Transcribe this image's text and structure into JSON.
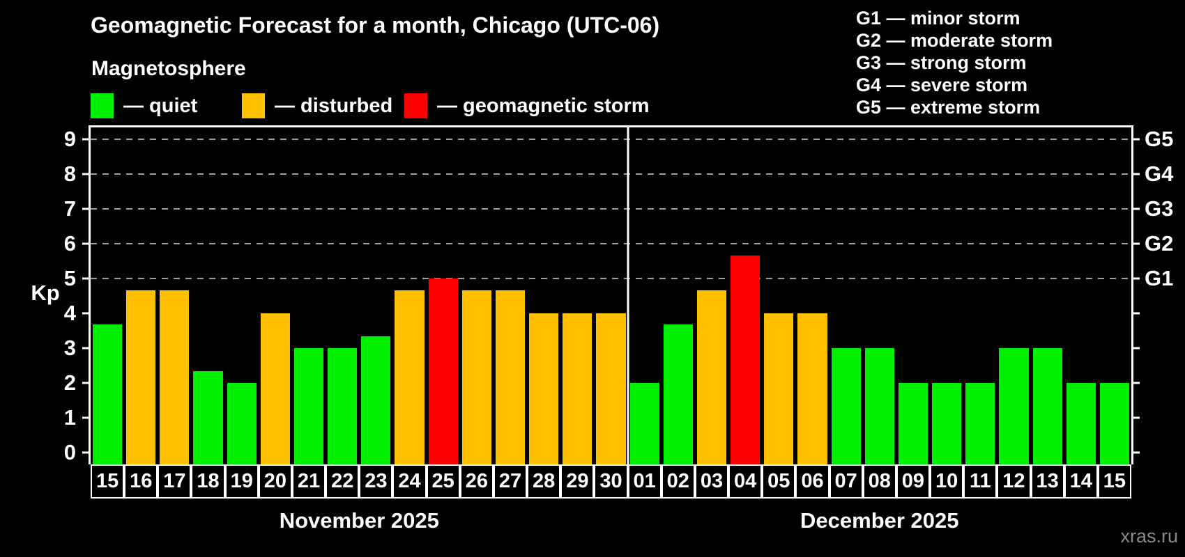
{
  "header": {
    "title": "Geomagnetic Forecast for a month, Chicago (UTC-06)",
    "subtitle": "Magnetosphere"
  },
  "legend": {
    "items": [
      {
        "name": "quiet",
        "label": "— quiet",
        "color": "#00ee00"
      },
      {
        "name": "disturbed",
        "label": "— disturbed",
        "color": "#ffc000"
      },
      {
        "name": "geomagnetic-storm",
        "label": "— geomagnetic storm",
        "color": "#ff0000"
      }
    ]
  },
  "g_legend": {
    "items": [
      "G1 — minor storm",
      "G2 — moderate storm",
      "G3 — strong storm",
      "G4 — severe storm",
      "G5 — extreme storm"
    ]
  },
  "watermark": "xras.ru",
  "chart_data": {
    "type": "bar",
    "ylabel": "Kp",
    "ylim": [
      0,
      9
    ],
    "display_ylim": [
      -0.35,
      9.35
    ],
    "y_ticks": [
      0,
      1,
      2,
      3,
      4,
      5,
      6,
      7,
      8,
      9
    ],
    "gridlines": [
      5,
      6,
      7,
      8,
      9
    ],
    "right_axis": [
      {
        "kp": 5,
        "label": "G1"
      },
      {
        "kp": 6,
        "label": "G2"
      },
      {
        "kp": 7,
        "label": "G3"
      },
      {
        "kp": 8,
        "label": "G4"
      },
      {
        "kp": 9,
        "label": "G5"
      }
    ],
    "bar_colors": {
      "quiet": "#00ee00",
      "disturbed": "#ffc000",
      "storm": "#ff0000"
    },
    "months": [
      {
        "label": "November 2025",
        "days": [
          {
            "day": "15",
            "kp": 3.67,
            "state": "quiet"
          },
          {
            "day": "16",
            "kp": 4.67,
            "state": "disturbed"
          },
          {
            "day": "17",
            "kp": 4.67,
            "state": "disturbed"
          },
          {
            "day": "18",
            "kp": 2.33,
            "state": "quiet"
          },
          {
            "day": "19",
            "kp": 2,
            "state": "quiet"
          },
          {
            "day": "20",
            "kp": 4,
            "state": "disturbed"
          },
          {
            "day": "21",
            "kp": 3,
            "state": "quiet"
          },
          {
            "day": "22",
            "kp": 3,
            "state": "quiet"
          },
          {
            "day": "23",
            "kp": 3.33,
            "state": "quiet"
          },
          {
            "day": "24",
            "kp": 4.67,
            "state": "disturbed"
          },
          {
            "day": "25",
            "kp": 5,
            "state": "storm"
          },
          {
            "day": "26",
            "kp": 4.67,
            "state": "disturbed"
          },
          {
            "day": "27",
            "kp": 4.67,
            "state": "disturbed"
          },
          {
            "day": "28",
            "kp": 4,
            "state": "disturbed"
          },
          {
            "day": "29",
            "kp": 4,
            "state": "disturbed"
          },
          {
            "day": "30",
            "kp": 4,
            "state": "disturbed"
          }
        ]
      },
      {
        "label": "December 2025",
        "days": [
          {
            "day": "01",
            "kp": 2,
            "state": "quiet"
          },
          {
            "day": "02",
            "kp": 3.67,
            "state": "quiet"
          },
          {
            "day": "03",
            "kp": 4.67,
            "state": "disturbed"
          },
          {
            "day": "04",
            "kp": 5.67,
            "state": "storm"
          },
          {
            "day": "05",
            "kp": 4,
            "state": "disturbed"
          },
          {
            "day": "06",
            "kp": 4,
            "state": "disturbed"
          },
          {
            "day": "07",
            "kp": 3,
            "state": "quiet"
          },
          {
            "day": "08",
            "kp": 3,
            "state": "quiet"
          },
          {
            "day": "09",
            "kp": 2,
            "state": "quiet"
          },
          {
            "day": "10",
            "kp": 2,
            "state": "quiet"
          },
          {
            "day": "11",
            "kp": 2,
            "state": "quiet"
          },
          {
            "day": "12",
            "kp": 3,
            "state": "quiet"
          },
          {
            "day": "13",
            "kp": 3,
            "state": "quiet"
          },
          {
            "day": "14",
            "kp": 2,
            "state": "quiet"
          },
          {
            "day": "15",
            "kp": 2,
            "state": "quiet"
          }
        ]
      }
    ]
  }
}
